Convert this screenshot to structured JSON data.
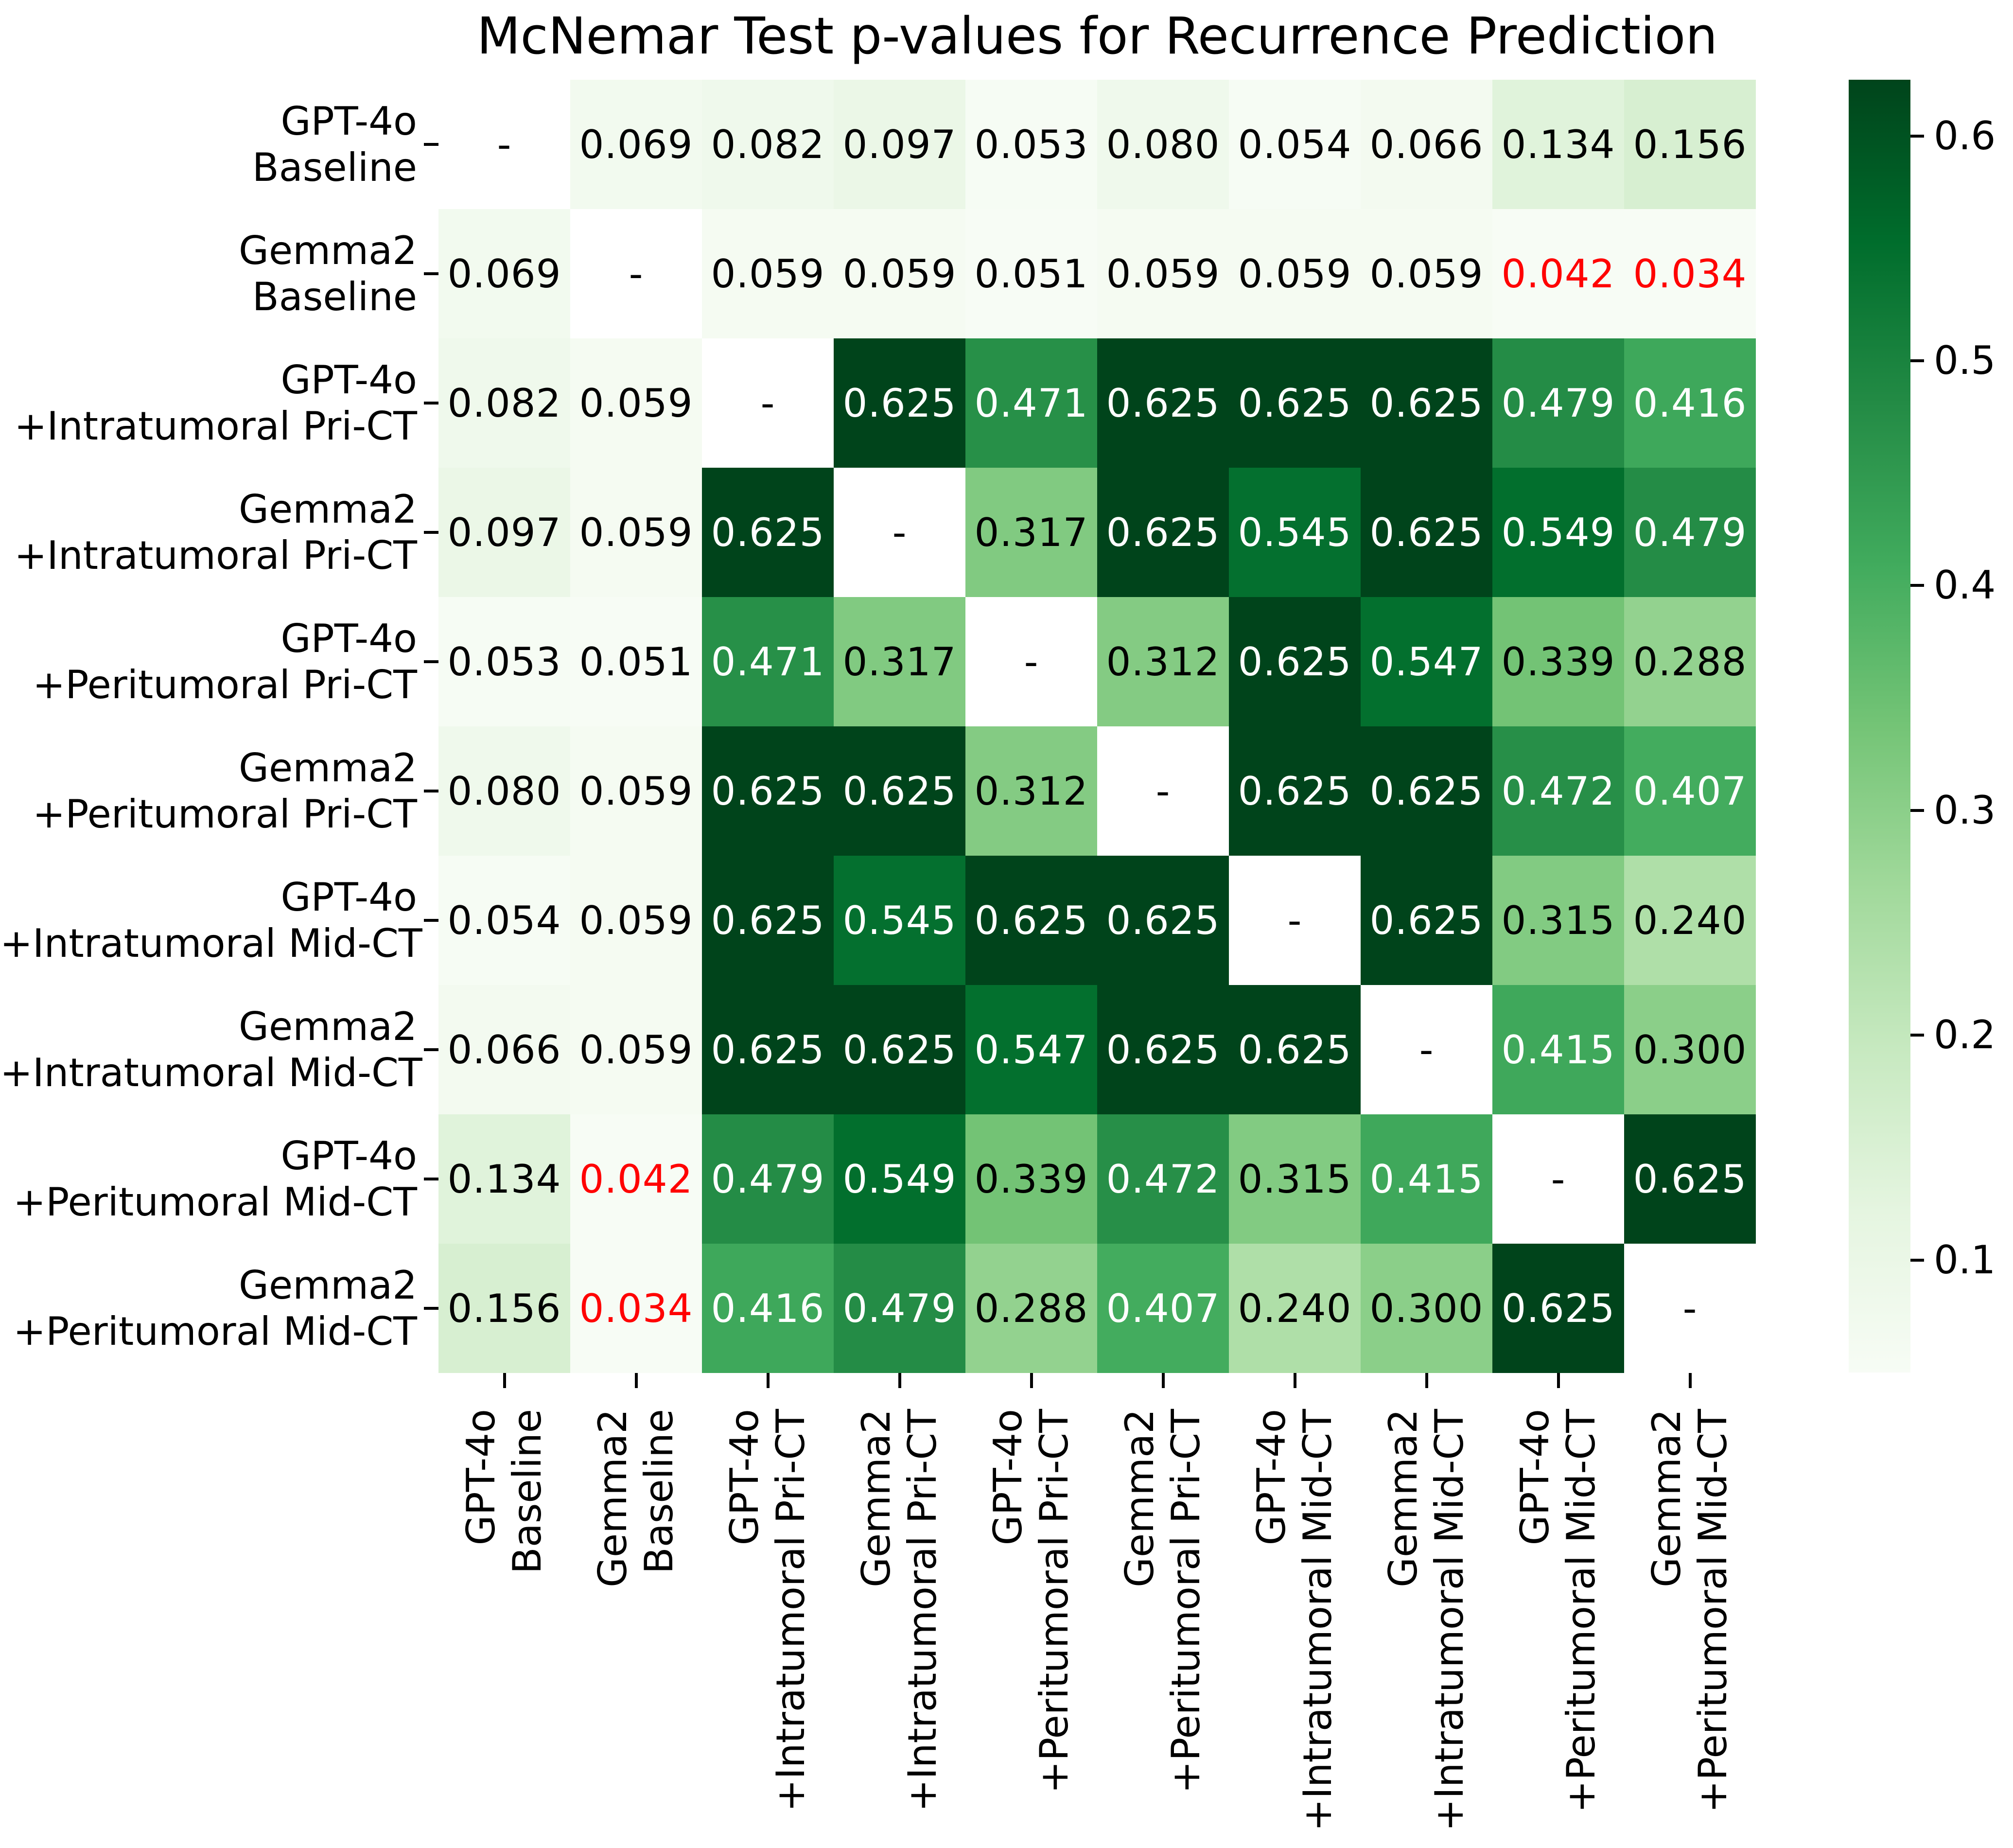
{
  "title": "McNemar Test p-values for Recurrence Prediction",
  "chart_data": {
    "type": "heatmap",
    "title": "McNemar Test p-values for Recurrence Prediction",
    "categories": [
      {
        "line1": "GPT-4o",
        "line2": "Baseline"
      },
      {
        "line1": "Gemma2",
        "line2": "Baseline"
      },
      {
        "line1": "GPT-4o",
        "line2": "+Intratumoral Pri-CT"
      },
      {
        "line1": "Gemma2",
        "line2": "+Intratumoral Pri-CT"
      },
      {
        "line1": "GPT-4o",
        "line2": "+Peritumoral Pri-CT"
      },
      {
        "line1": "Gemma2",
        "line2": "+Peritumoral Pri-CT"
      },
      {
        "line1": "GPT-4o",
        "line2": "+Intratumoral Mid-CT"
      },
      {
        "line1": "Gemma2",
        "line2": "+Intratumoral Mid-CT"
      },
      {
        "line1": "GPT-4o",
        "line2": "+Peritumoral Mid-CT"
      },
      {
        "line1": "Gemma2",
        "line2": "+Peritumoral Mid-CT"
      }
    ],
    "matrix": [
      [
        null,
        0.069,
        0.082,
        0.097,
        0.053,
        0.08,
        0.054,
        0.066,
        0.134,
        0.156
      ],
      [
        0.069,
        null,
        0.059,
        0.059,
        0.051,
        0.059,
        0.059,
        0.059,
        0.042,
        0.034
      ],
      [
        0.082,
        0.059,
        null,
        0.625,
        0.471,
        0.625,
        0.625,
        0.625,
        0.479,
        0.416
      ],
      [
        0.097,
        0.059,
        0.625,
        null,
        0.317,
        0.625,
        0.545,
        0.625,
        0.549,
        0.479
      ],
      [
        0.053,
        0.051,
        0.471,
        0.317,
        null,
        0.312,
        0.625,
        0.547,
        0.339,
        0.288
      ],
      [
        0.08,
        0.059,
        0.625,
        0.625,
        0.312,
        null,
        0.625,
        0.625,
        0.472,
        0.407
      ],
      [
        0.054,
        0.059,
        0.625,
        0.545,
        0.625,
        0.625,
        null,
        0.625,
        0.315,
        0.24
      ],
      [
        0.066,
        0.059,
        0.625,
        0.625,
        0.547,
        0.625,
        0.625,
        null,
        0.415,
        0.3
      ],
      [
        0.134,
        0.042,
        0.479,
        0.549,
        0.339,
        0.472,
        0.315,
        0.415,
        null,
        0.625
      ],
      [
        0.156,
        0.034,
        0.416,
        0.479,
        0.288,
        0.407,
        0.24,
        0.3,
        0.625,
        null
      ]
    ],
    "diagonal_text": "-",
    "decimals": 3,
    "colormap": "Greens",
    "colormap_stops": [
      "#f7fcf5",
      "#e5f5e0",
      "#c7e9c0",
      "#a1d99b",
      "#74c476",
      "#41ab5d",
      "#238b45",
      "#006d2c",
      "#00441b"
    ],
    "vmin": 0.05,
    "vmax": 0.625,
    "colorbar_ticks": [
      "0.6",
      "0.5",
      "0.4",
      "0.3",
      "0.2",
      "0.1"
    ],
    "colorbar_tick_values": [
      0.6,
      0.5,
      0.4,
      0.3,
      0.2,
      0.1
    ],
    "legend_position": "right",
    "grid": false,
    "significance_alpha": 0.05,
    "white_text_threshold": 0.57,
    "colors": {
      "significant_text": "#ff0000",
      "annotation_dark": "#000000",
      "annotation_light": "#ffffff",
      "diagonal_cell": "#ffffff",
      "background": "#ffffff",
      "tick": "#000000"
    }
  }
}
